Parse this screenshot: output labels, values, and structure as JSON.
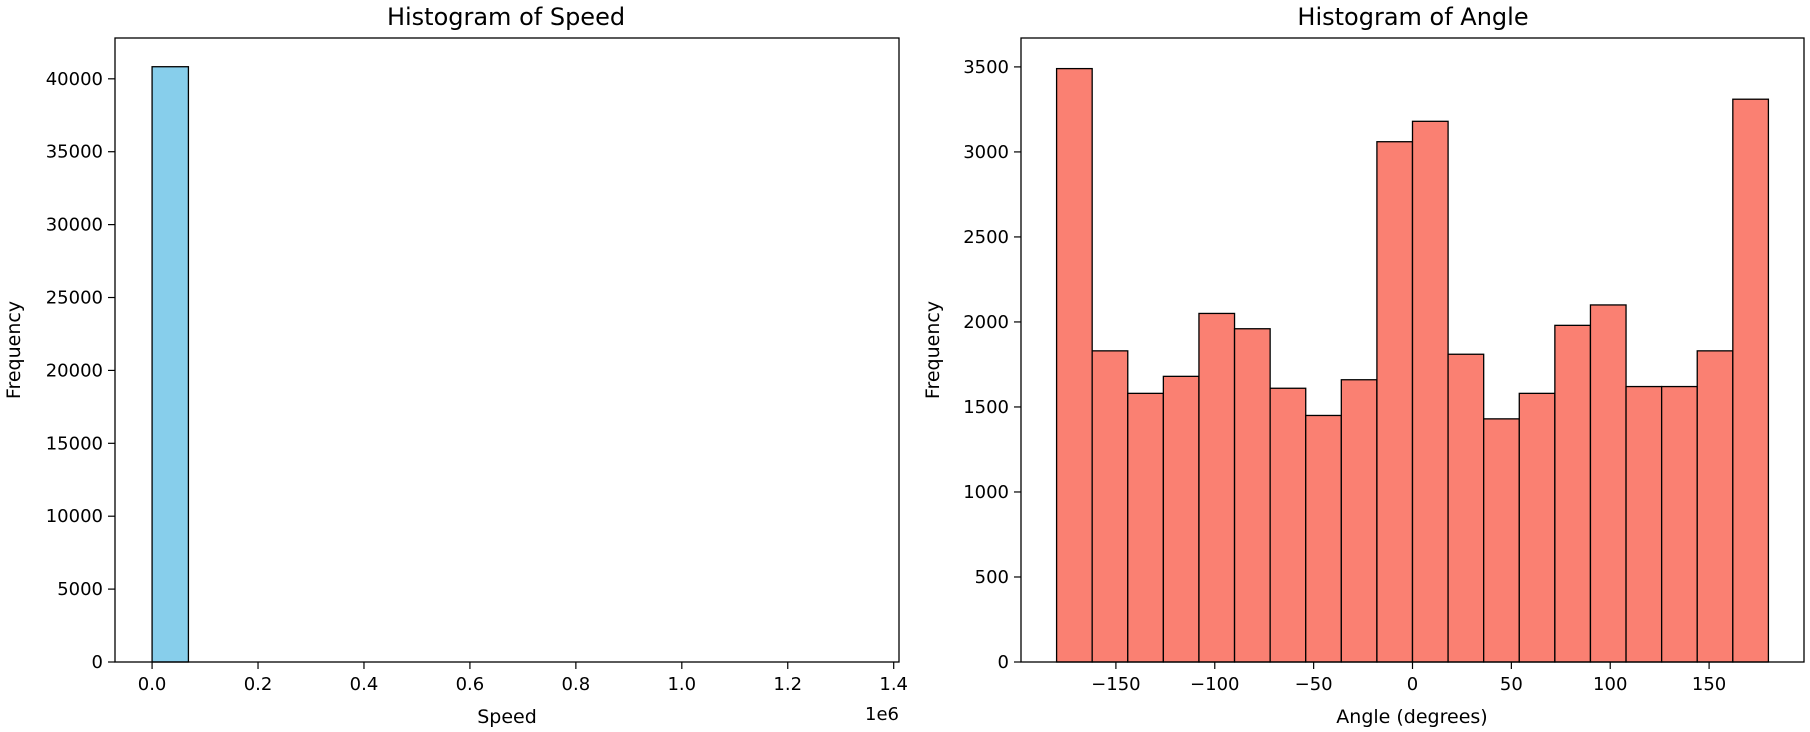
{
  "chart_data": [
    {
      "type": "bar",
      "title": "Histogram of Speed",
      "xlabel": "Speed",
      "ylabel": "Frequency",
      "offset_text": "1e6",
      "xlim": [
        -0.07,
        1.41
      ],
      "ylim": [
        0,
        42800
      ],
      "xticks": [
        0.0,
        0.2,
        0.4,
        0.6,
        0.8,
        1.0,
        1.2,
        1.4
      ],
      "xtick_labels": [
        "0.0",
        "0.2",
        "0.4",
        "0.6",
        "0.8",
        "1.0",
        "1.2",
        "1.4"
      ],
      "yticks": [
        0,
        5000,
        10000,
        15000,
        20000,
        25000,
        30000,
        35000,
        40000
      ],
      "ytick_labels": [
        "0",
        "5000",
        "10000",
        "15000",
        "20000",
        "25000",
        "30000",
        "35000",
        "40000"
      ],
      "bin_edges": [
        0.0,
        0.0686,
        0.1372,
        0.2058,
        0.2744,
        0.343,
        0.4116,
        0.4802,
        0.5488,
        0.6174,
        0.686,
        0.7546,
        0.8232,
        0.8918,
        0.9604,
        1.029,
        1.0976,
        1.1662,
        1.2348,
        1.3034,
        1.372
      ],
      "values": [
        40830,
        0,
        0,
        0,
        0,
        0,
        0,
        0,
        0,
        0,
        0,
        0,
        0,
        0,
        0,
        0,
        0,
        0,
        0,
        0
      ],
      "color": "#87ceeb",
      "edgecolor": "#000000",
      "grid": false
    },
    {
      "type": "bar",
      "title": "Histogram of Angle",
      "xlabel": "Angle (degrees)",
      "ylabel": "Frequency",
      "xlim": [
        -198,
        198
      ],
      "ylim": [
        0,
        3670
      ],
      "xticks": [
        -150,
        -100,
        -50,
        0,
        50,
        100,
        150
      ],
      "xtick_labels": [
        "−150",
        "−100",
        "−50",
        "0",
        "50",
        "100",
        "150"
      ],
      "yticks": [
        0,
        500,
        1000,
        1500,
        2000,
        2500,
        3000,
        3500
      ],
      "ytick_labels": [
        "0",
        "500",
        "1000",
        "1500",
        "2000",
        "2500",
        "3000",
        "3500"
      ],
      "bin_edges": [
        -180,
        -162,
        -144,
        -126,
        -108,
        -90,
        -72,
        -54,
        -36,
        -18,
        0,
        18,
        36,
        54,
        72,
        90,
        108,
        126,
        144,
        162,
        180
      ],
      "values": [
        3490,
        1830,
        1580,
        1680,
        2050,
        1960,
        1610,
        1450,
        1660,
        3060,
        3180,
        1810,
        1430,
        1580,
        1980,
        2100,
        1620,
        1620,
        1830,
        3310
      ],
      "color": "#fa8072",
      "edgecolor": "#000000",
      "grid": false
    }
  ]
}
